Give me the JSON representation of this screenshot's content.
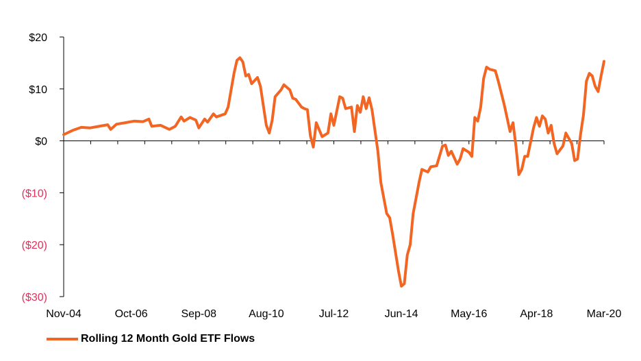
{
  "chart_data": {
    "type": "line",
    "title": "",
    "xlabel": "",
    "ylabel": "",
    "ylim": [
      -30,
      20
    ],
    "x_range": [
      "2004-11",
      "2020-03"
    ],
    "y_ticks": [
      {
        "value": 20,
        "label": "$20"
      },
      {
        "value": 10,
        "label": "$10"
      },
      {
        "value": 0,
        "label": "$0"
      },
      {
        "value": -10,
        "label": "($10)"
      },
      {
        "value": -20,
        "label": "($20)"
      },
      {
        "value": -30,
        "label": "($30)"
      }
    ],
    "x_ticks": [
      {
        "value": "2004-11",
        "label": "Nov-04"
      },
      {
        "value": "2006-10",
        "label": "Oct-06"
      },
      {
        "value": "2008-09",
        "label": "Sep-08"
      },
      {
        "value": "2010-08",
        "label": "Aug-10"
      },
      {
        "value": "2012-07",
        "label": "Jul-12"
      },
      {
        "value": "2014-06",
        "label": "Jun-14"
      },
      {
        "value": "2016-05",
        "label": "May-16"
      },
      {
        "value": "2018-04",
        "label": "Apr-18"
      },
      {
        "value": "2020-03",
        "label": "Mar-20"
      }
    ],
    "grid": false,
    "legend_position": "bottom-left",
    "negative_label_color": "#e0305a",
    "positive_label_color": "#000000",
    "series": [
      {
        "name": "Rolling 12 Month Gold ETF Flows",
        "color": "#f26522",
        "points": [
          [
            "2004-11",
            1.2
          ],
          [
            "2005-02",
            2.0
          ],
          [
            "2005-05",
            2.6
          ],
          [
            "2005-08",
            2.5
          ],
          [
            "2005-11",
            2.8
          ],
          [
            "2006-02",
            3.1
          ],
          [
            "2006-03",
            2.2
          ],
          [
            "2006-05",
            3.2
          ],
          [
            "2006-08",
            3.5
          ],
          [
            "2006-11",
            3.8
          ],
          [
            "2007-02",
            3.7
          ],
          [
            "2007-04",
            4.2
          ],
          [
            "2007-05",
            2.8
          ],
          [
            "2007-08",
            3.0
          ],
          [
            "2007-11",
            2.2
          ],
          [
            "2008-01",
            2.8
          ],
          [
            "2008-03",
            4.6
          ],
          [
            "2008-04",
            3.8
          ],
          [
            "2008-06",
            4.5
          ],
          [
            "2008-08",
            4.0
          ],
          [
            "2008-09",
            2.5
          ],
          [
            "2008-11",
            4.2
          ],
          [
            "2008-12",
            3.6
          ],
          [
            "2009-02",
            5.2
          ],
          [
            "2009-03",
            4.6
          ],
          [
            "2009-05",
            5.0
          ],
          [
            "2009-06",
            5.2
          ],
          [
            "2009-07",
            6.5
          ],
          [
            "2009-09",
            13.0
          ],
          [
            "2009-10",
            15.5
          ],
          [
            "2009-11",
            16.0
          ],
          [
            "2009-12",
            15.2
          ],
          [
            "2010-01",
            12.5
          ],
          [
            "2010-02",
            12.8
          ],
          [
            "2010-03",
            11.0
          ],
          [
            "2010-05",
            12.2
          ],
          [
            "2010-06",
            10.5
          ],
          [
            "2010-08",
            3.0
          ],
          [
            "2010-09",
            1.5
          ],
          [
            "2010-10",
            4.0
          ],
          [
            "2010-11",
            8.5
          ],
          [
            "2011-01",
            9.8
          ],
          [
            "2011-02",
            10.8
          ],
          [
            "2011-04",
            9.8
          ],
          [
            "2011-05",
            8.2
          ],
          [
            "2011-06",
            8.0
          ],
          [
            "2011-08",
            6.5
          ],
          [
            "2011-09",
            6.2
          ],
          [
            "2011-10",
            6.0
          ],
          [
            "2011-11",
            1.0
          ],
          [
            "2011-12",
            -1.2
          ],
          [
            "2012-01",
            3.5
          ],
          [
            "2012-03",
            0.8
          ],
          [
            "2012-05",
            1.5
          ],
          [
            "2012-06",
            5.2
          ],
          [
            "2012-07",
            3.0
          ],
          [
            "2012-09",
            8.5
          ],
          [
            "2012-10",
            8.2
          ],
          [
            "2012-11",
            6.2
          ],
          [
            "2013-01",
            6.5
          ],
          [
            "2013-02",
            1.8
          ],
          [
            "2013-03",
            6.8
          ],
          [
            "2013-04",
            5.5
          ],
          [
            "2013-05",
            8.5
          ],
          [
            "2013-06",
            6.2
          ],
          [
            "2013-07",
            8.3
          ],
          [
            "2013-08",
            6.0
          ],
          [
            "2013-09",
            2.0
          ],
          [
            "2013-10",
            -2.0
          ],
          [
            "2013-11",
            -8.0
          ],
          [
            "2014-01",
            -14.0
          ],
          [
            "2014-02",
            -14.8
          ],
          [
            "2014-03",
            -18.0
          ],
          [
            "2014-05",
            -25.0
          ],
          [
            "2014-06",
            -28.0
          ],
          [
            "2014-07",
            -27.5
          ],
          [
            "2014-08",
            -22.0
          ],
          [
            "2014-09",
            -20.0
          ],
          [
            "2014-10",
            -14.0
          ],
          [
            "2014-12",
            -8.0
          ],
          [
            "2015-01",
            -5.5
          ],
          [
            "2015-03",
            -6.0
          ],
          [
            "2015-04",
            -5.0
          ],
          [
            "2015-06",
            -4.8
          ],
          [
            "2015-08",
            -1.0
          ],
          [
            "2015-09",
            -0.8
          ],
          [
            "2015-10",
            -2.8
          ],
          [
            "2015-11",
            -2.0
          ],
          [
            "2016-01",
            -4.5
          ],
          [
            "2016-02",
            -3.5
          ],
          [
            "2016-03",
            -1.5
          ],
          [
            "2016-05",
            -2.2
          ],
          [
            "2016-06",
            -3.0
          ],
          [
            "2016-07",
            4.5
          ],
          [
            "2016-08",
            3.8
          ],
          [
            "2016-09",
            6.5
          ],
          [
            "2016-10",
            12.0
          ],
          [
            "2016-11",
            14.2
          ],
          [
            "2016-12",
            13.8
          ],
          [
            "2017-02",
            13.5
          ],
          [
            "2017-03",
            11.5
          ],
          [
            "2017-05",
            7.0
          ],
          [
            "2017-07",
            1.8
          ],
          [
            "2017-08",
            3.5
          ],
          [
            "2017-09",
            -1.0
          ],
          [
            "2017-10",
            -6.5
          ],
          [
            "2017-11",
            -5.5
          ],
          [
            "2017-12",
            -3.0
          ],
          [
            "2018-01",
            -3.0
          ],
          [
            "2018-03",
            2.5
          ],
          [
            "2018-04",
            4.5
          ],
          [
            "2018-05",
            2.8
          ],
          [
            "2018-06",
            4.8
          ],
          [
            "2018-07",
            4.2
          ],
          [
            "2018-08",
            1.5
          ],
          [
            "2018-09",
            3.0
          ],
          [
            "2018-10",
            -0.5
          ],
          [
            "2018-11",
            -2.5
          ],
          [
            "2019-01",
            -1.0
          ],
          [
            "2019-02",
            1.5
          ],
          [
            "2019-03",
            0.5
          ],
          [
            "2019-04",
            -0.5
          ],
          [
            "2019-05",
            -3.8
          ],
          [
            "2019-06",
            -3.5
          ],
          [
            "2019-07",
            1.2
          ],
          [
            "2019-08",
            5.0
          ],
          [
            "2019-09",
            11.5
          ],
          [
            "2019-10",
            13.0
          ],
          [
            "2019-11",
            12.5
          ],
          [
            "2019-12",
            10.5
          ],
          [
            "2020-01",
            9.5
          ],
          [
            "2020-02",
            12.5
          ],
          [
            "2020-03",
            15.3
          ]
        ]
      }
    ]
  }
}
